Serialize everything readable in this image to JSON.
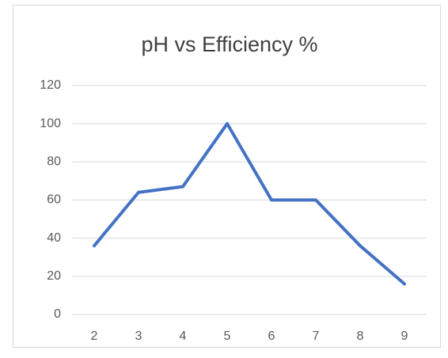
{
  "chart_data": {
    "type": "line",
    "title": "pH vs Efficiency %",
    "categories": [
      "2",
      "3",
      "4",
      "5",
      "6",
      "7",
      "8",
      "9"
    ],
    "series": [
      {
        "name": "Efficiency %",
        "color": "#4472c4",
        "values": [
          36,
          64,
          67,
          100,
          60,
          60,
          36,
          16
        ]
      }
    ],
    "ylim": [
      0,
      120
    ],
    "yticks": [
      0,
      20,
      40,
      60,
      80,
      100,
      120
    ],
    "grid": true
  }
}
